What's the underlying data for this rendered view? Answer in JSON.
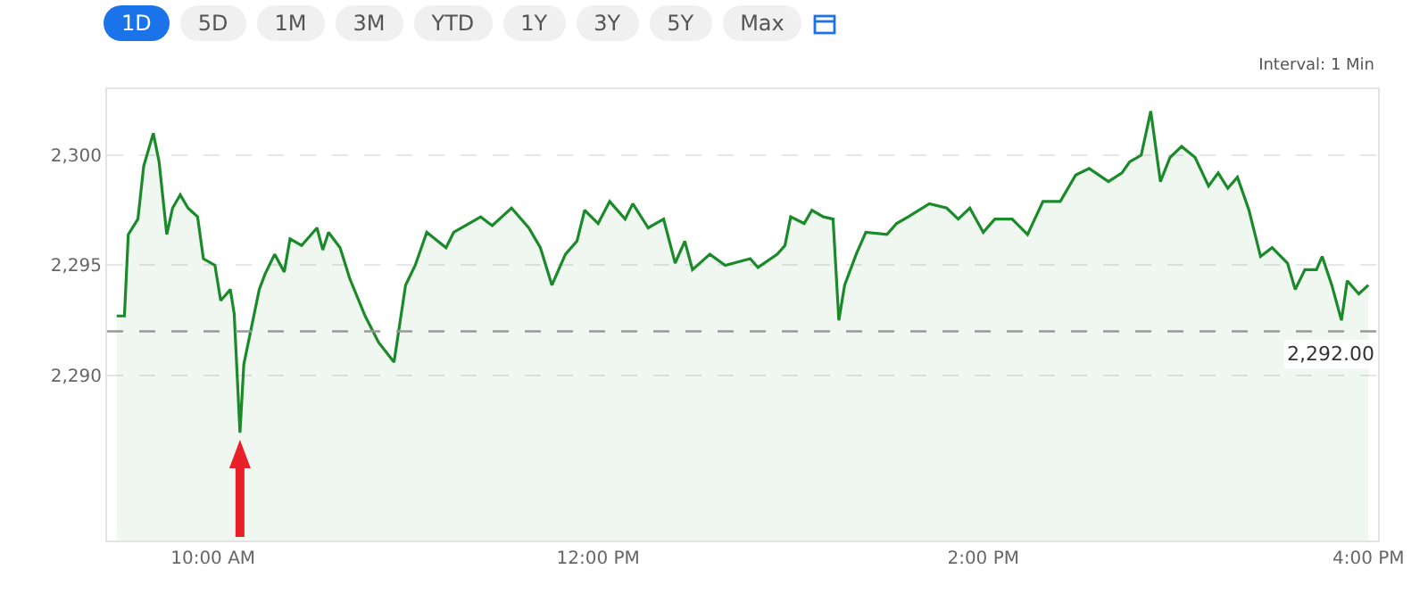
{
  "chart_data": {
    "type": "area",
    "subtitle": "Interval: 1 Min",
    "annotations": [
      "1D",
      "5D",
      "1M",
      "3M",
      "YTD",
      "1Y",
      "3Y",
      "5Y",
      "Max"
    ],
    "x": [
      9.5,
      9.54,
      9.56,
      9.61,
      9.64,
      9.69,
      9.72,
      9.76,
      9.79,
      9.83,
      9.87,
      9.92,
      9.95,
      10.01,
      10.04,
      10.09,
      10.11,
      10.14,
      10.16,
      10.2,
      10.24,
      10.27,
      10.32,
      10.37,
      10.4,
      10.46,
      10.54,
      10.57,
      10.6,
      10.66,
      10.71,
      10.79,
      10.86,
      10.94,
      11.0,
      11.05,
      11.11,
      11.21,
      11.25,
      11.39,
      11.45,
      11.55,
      11.64,
      11.7,
      11.76,
      11.83,
      11.89,
      11.93,
      12.0,
      12.06,
      12.14,
      12.18,
      12.26,
      12.34,
      12.4,
      12.45,
      12.49,
      12.58,
      12.66,
      12.79,
      12.83,
      12.93,
      12.97,
      13.0,
      13.07,
      13.11,
      13.17,
      13.22,
      13.25,
      13.28,
      13.34,
      13.39,
      13.5,
      13.55,
      13.61,
      13.72,
      13.81,
      13.87,
      13.93,
      14.0,
      14.06,
      14.15,
      14.23,
      14.31,
      14.4,
      14.48,
      14.55,
      14.65,
      14.72,
      14.76,
      14.82,
      14.87,
      14.92,
      14.97,
      15.03,
      15.1,
      15.17,
      15.22,
      15.27,
      15.32,
      15.38,
      15.44,
      15.5,
      15.58,
      15.62,
      15.67,
      15.73,
      15.76,
      15.81,
      15.86,
      15.89,
      15.95,
      16.0
    ],
    "series": [
      {
        "color": "#1a8a2a",
        "values": [
          2292.7,
          2292.7,
          2296.4,
          2297.1,
          2299.5,
          2301.0,
          2299.7,
          2296.4,
          2297.6,
          2298.2,
          2297.6,
          2297.2,
          2295.3,
          2295.0,
          2293.4,
          2293.9,
          2292.8,
          2287.4,
          2290.5,
          2292.2,
          2293.9,
          2294.6,
          2295.5,
          2294.7,
          2296.2,
          2295.9,
          2296.7,
          2295.7,
          2296.5,
          2295.8,
          2294.4,
          2292.7,
          2291.5,
          2290.6,
          2294.1,
          2295.0,
          2296.5,
          2295.8,
          2296.5,
          2297.2,
          2296.8,
          2297.6,
          2296.7,
          2295.8,
          2294.1,
          2295.5,
          2296.1,
          2297.5,
          2296.9,
          2297.9,
          2297.1,
          2297.8,
          2296.7,
          2297.1,
          2295.1,
          2296.1,
          2294.8,
          2295.5,
          2295.0,
          2295.3,
          2294.9,
          2295.5,
          2295.9,
          2297.2,
          2296.9,
          2297.5,
          2297.2,
          2297.1,
          2292.5,
          2294.1,
          2295.5,
          2296.5,
          2296.4,
          2296.9,
          2297.2,
          2297.8,
          2297.6,
          2297.1,
          2297.6,
          2296.5,
          2297.1,
          2297.1,
          2296.4,
          2297.9,
          2297.9,
          2299.1,
          2299.4,
          2298.8,
          2299.2,
          2299.7,
          2300.0,
          2302.0,
          2298.8,
          2299.9,
          2300.4,
          2299.9,
          2298.6,
          2299.2,
          2298.5,
          2299.0,
          2297.5,
          2295.4,
          2295.8,
          2295.1,
          2293.9,
          2294.8,
          2294.8,
          2295.4,
          2294.1,
          2292.5,
          2294.3,
          2293.7,
          2294.1
        ]
      }
    ],
    "xlim": [
      9.45,
      16.05
    ],
    "xticks": [
      {
        "value": 10,
        "label": "10:00 AM"
      },
      {
        "value": 12,
        "label": "12:00 PM"
      },
      {
        "value": 14,
        "label": "2:00 PM"
      },
      {
        "value": 16,
        "label": "4:00 PM"
      }
    ],
    "ylim": [
      2282.5,
      2303
    ],
    "yticks": [
      {
        "value": 2290,
        "label": "2,290"
      },
      {
        "value": 2295,
        "label": "2,295"
      },
      {
        "value": 2300,
        "label": "2,300"
      }
    ],
    "grid": "y",
    "ref_lines": [
      {
        "axis": "y",
        "value": 2292,
        "label": "2,292.00",
        "color": "#999999",
        "line_style": "dashed"
      }
    ],
    "line_style": "solid"
  }
}
